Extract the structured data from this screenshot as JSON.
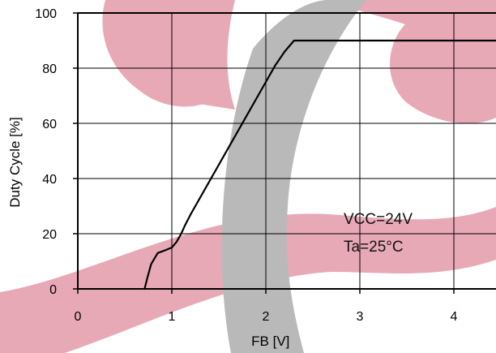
{
  "colors": {
    "watermark_red": "#e8a9b7",
    "watermark_gray": "#b9b9b9",
    "grid": "#000000",
    "line": "#000000"
  },
  "chart_data": {
    "type": "line",
    "title": "",
    "xlabel": "FB [V]",
    "ylabel": "Duty Cycle [%]",
    "xlim": [
      0,
      4.45
    ],
    "ylim": [
      0,
      100
    ],
    "xticks": [
      0,
      1,
      2,
      3,
      4
    ],
    "yticks": [
      0,
      20,
      40,
      60,
      80,
      100
    ],
    "grid": true,
    "annotations": [
      "VCC=24V",
      "Ta=25°C"
    ],
    "series": [
      {
        "x": [
          0.71,
          0.74,
          0.78,
          0.85,
          0.93,
          1.0,
          1.05,
          1.1,
          1.14,
          1.2,
          1.4,
          1.6,
          1.8,
          2.0,
          2.1,
          2.2,
          2.3,
          2.4,
          2.6,
          3.0,
          3.5,
          4.0,
          4.45
        ],
        "y": [
          0,
          4,
          9,
          13,
          14,
          15,
          17,
          20,
          23,
          27,
          39,
          51,
          63,
          75,
          81,
          86,
          90,
          90,
          90,
          90,
          90,
          90,
          90
        ]
      }
    ]
  }
}
